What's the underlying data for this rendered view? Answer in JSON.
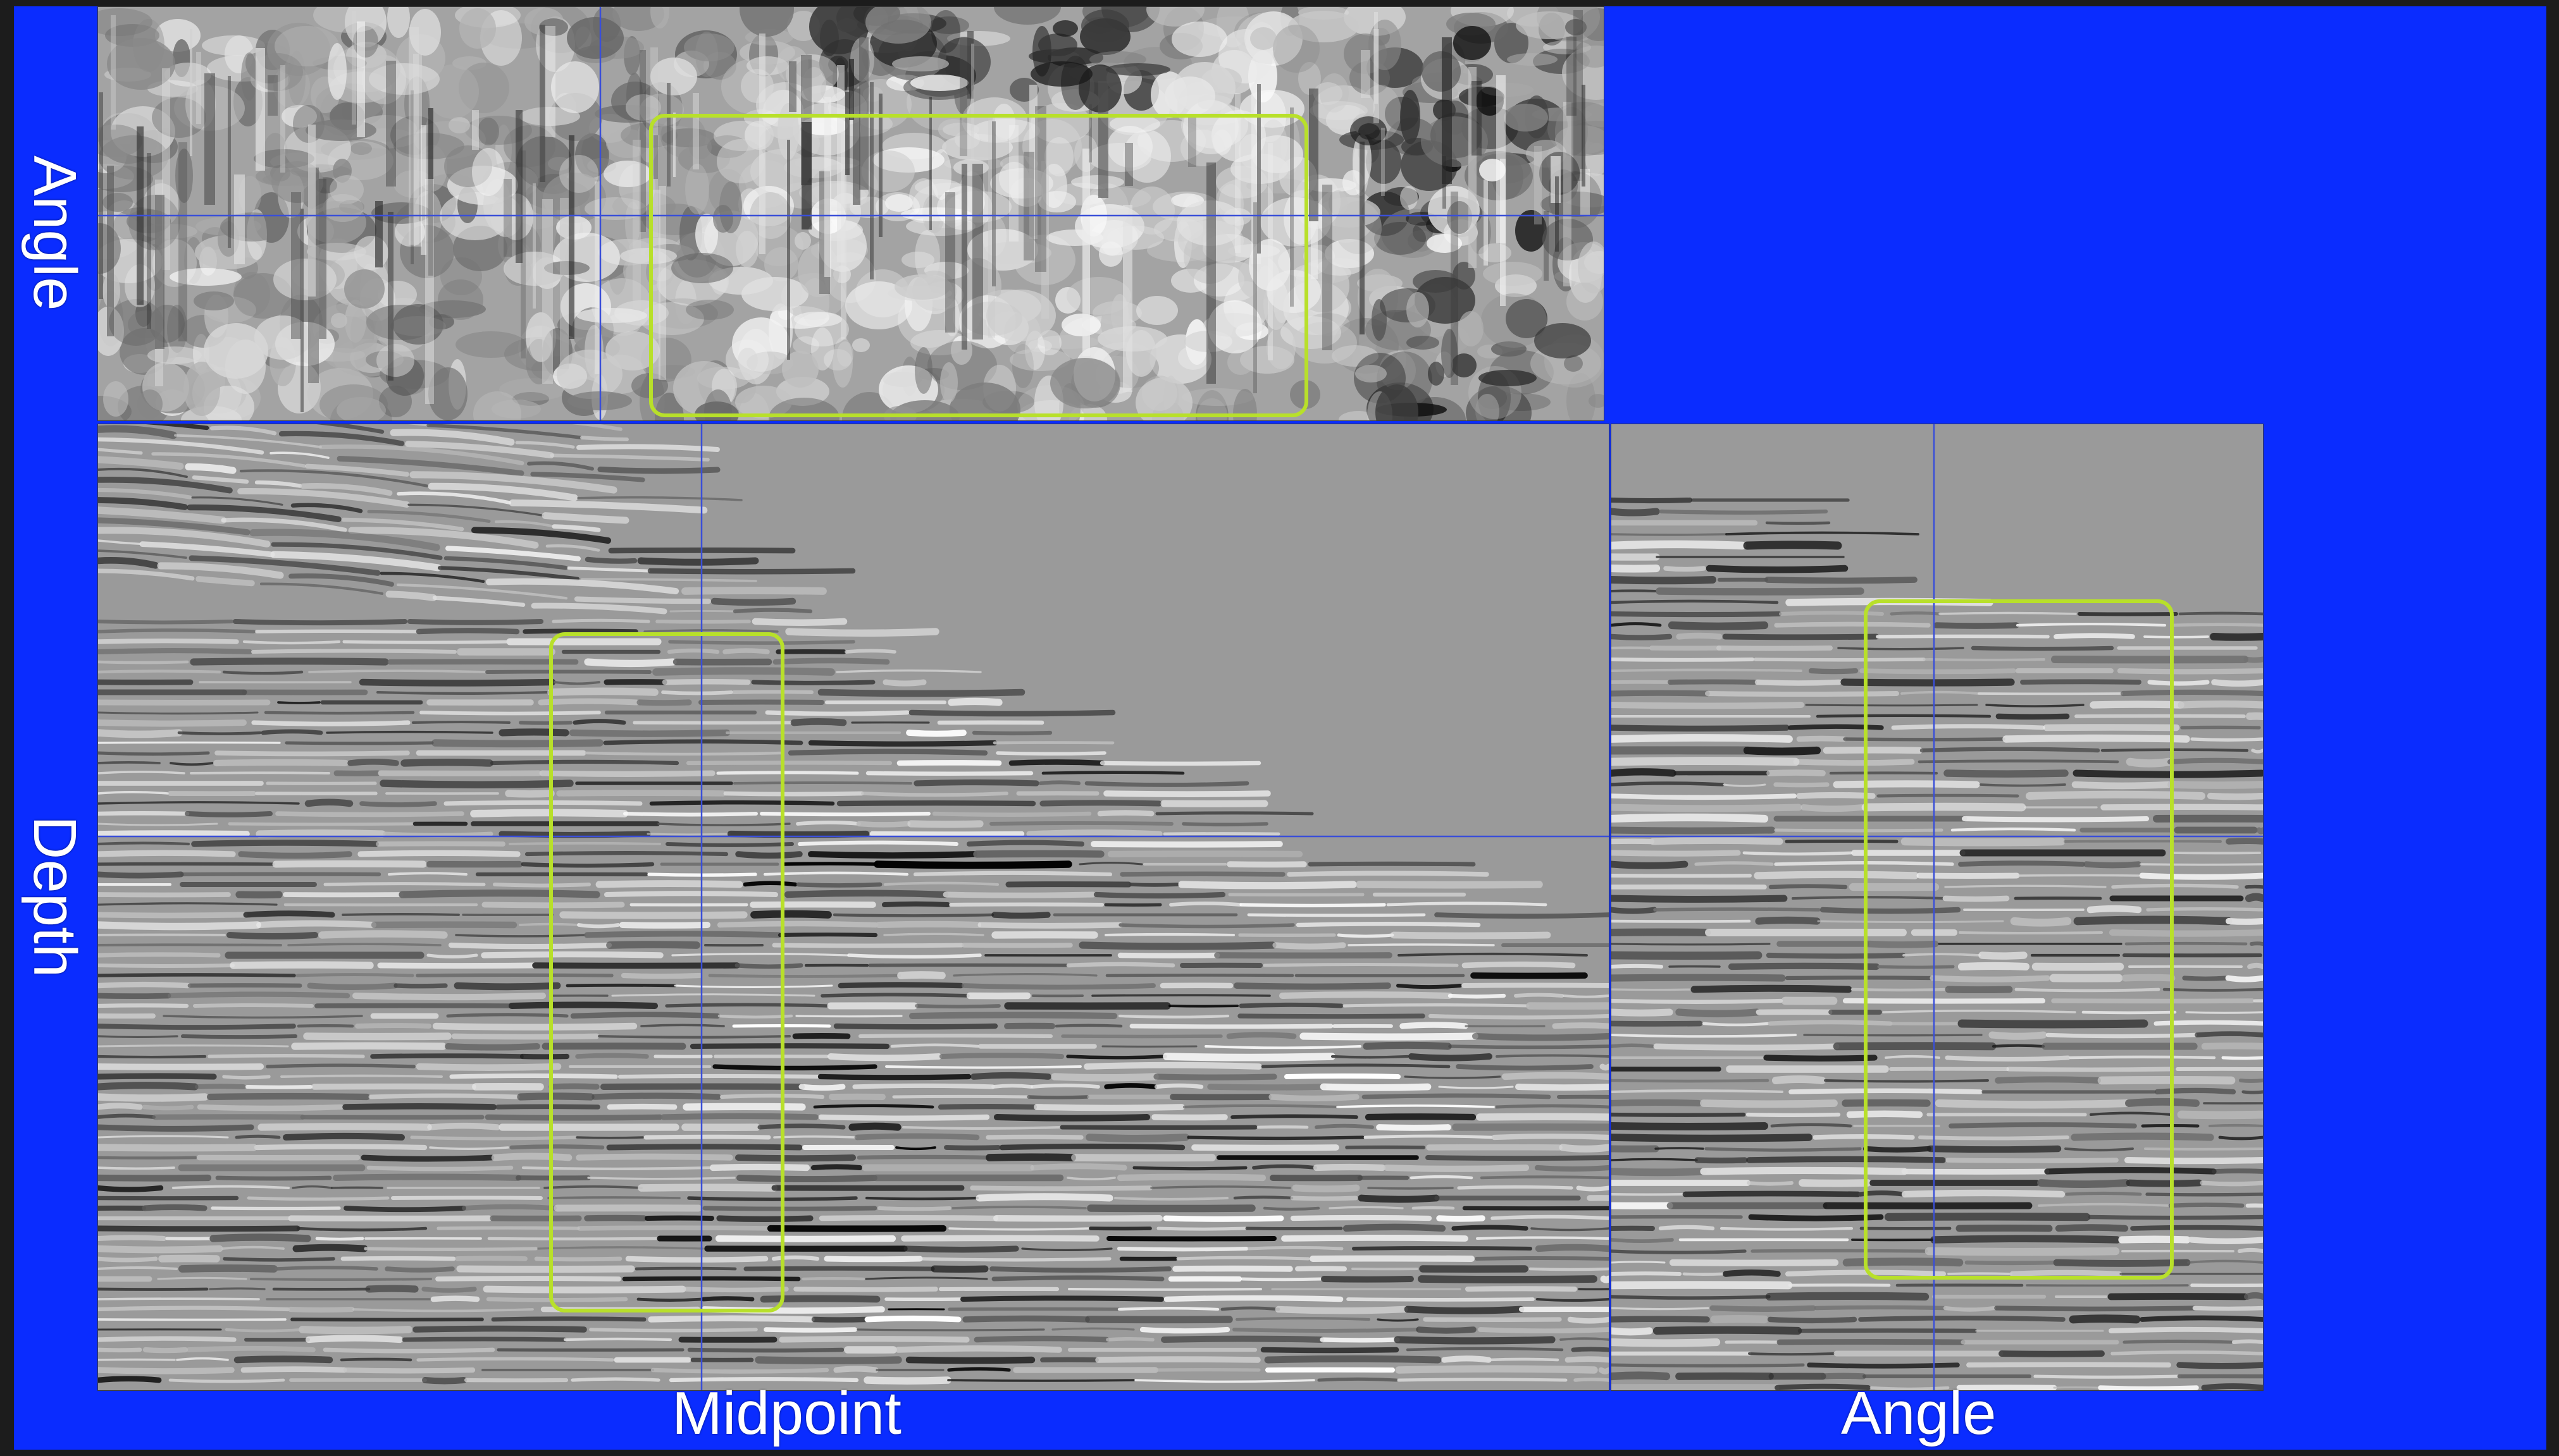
{
  "figure": {
    "background_color": "#0a2cff",
    "panel_gray": "#9a9a9a",
    "highlight_box_color": "#b8e02a",
    "crosshair_color": "#3a4fd8"
  },
  "labels": {
    "top_left_vertical": "Angle",
    "left_vertical": "Depth",
    "bottom_center": "Midpoint",
    "bottom_right": "Angle"
  },
  "panels": {
    "top": {
      "name": "angle-vs-midpoint-slice"
    },
    "main": {
      "name": "depth-vs-midpoint-section"
    },
    "right": {
      "name": "depth-vs-angle-gather"
    }
  }
}
